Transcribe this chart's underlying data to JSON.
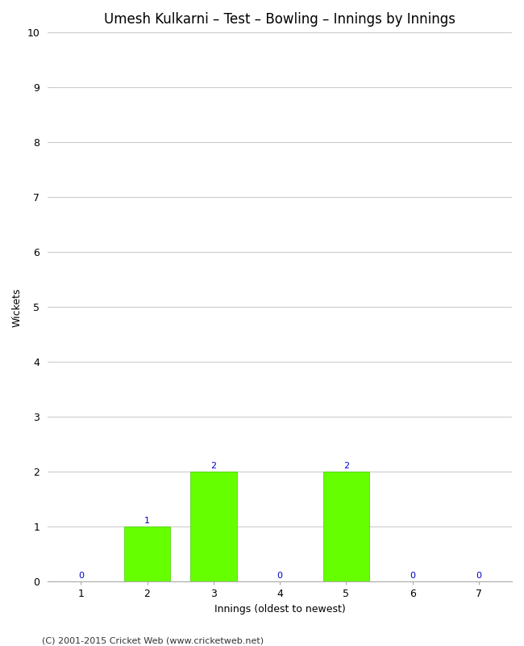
{
  "title": "Umesh Kulkarni – Test – Bowling – Innings by Innings",
  "xlabel": "Innings (oldest to newest)",
  "ylabel": "Wickets",
  "categories": [
    1,
    2,
    3,
    4,
    5,
    6,
    7
  ],
  "values": [
    0,
    1,
    2,
    0,
    2,
    0,
    0
  ],
  "bar_color": "#66ff00",
  "bar_edge_color": "#44cc00",
  "ylim": [
    0,
    10
  ],
  "xlim": [
    0.5,
    7.5
  ],
  "yticks": [
    0,
    1,
    2,
    3,
    4,
    5,
    6,
    7,
    8,
    9,
    10
  ],
  "label_color": "#0000cc",
  "label_fontsize": 8,
  "title_fontsize": 12,
  "axis_label_fontsize": 9,
  "tick_fontsize": 9,
  "footer": "(C) 2001-2015 Cricket Web (www.cricketweb.net)",
  "footer_fontsize": 8,
  "background_color": "#ffffff",
  "grid_color": "#cccccc",
  "bar_width": 0.7
}
